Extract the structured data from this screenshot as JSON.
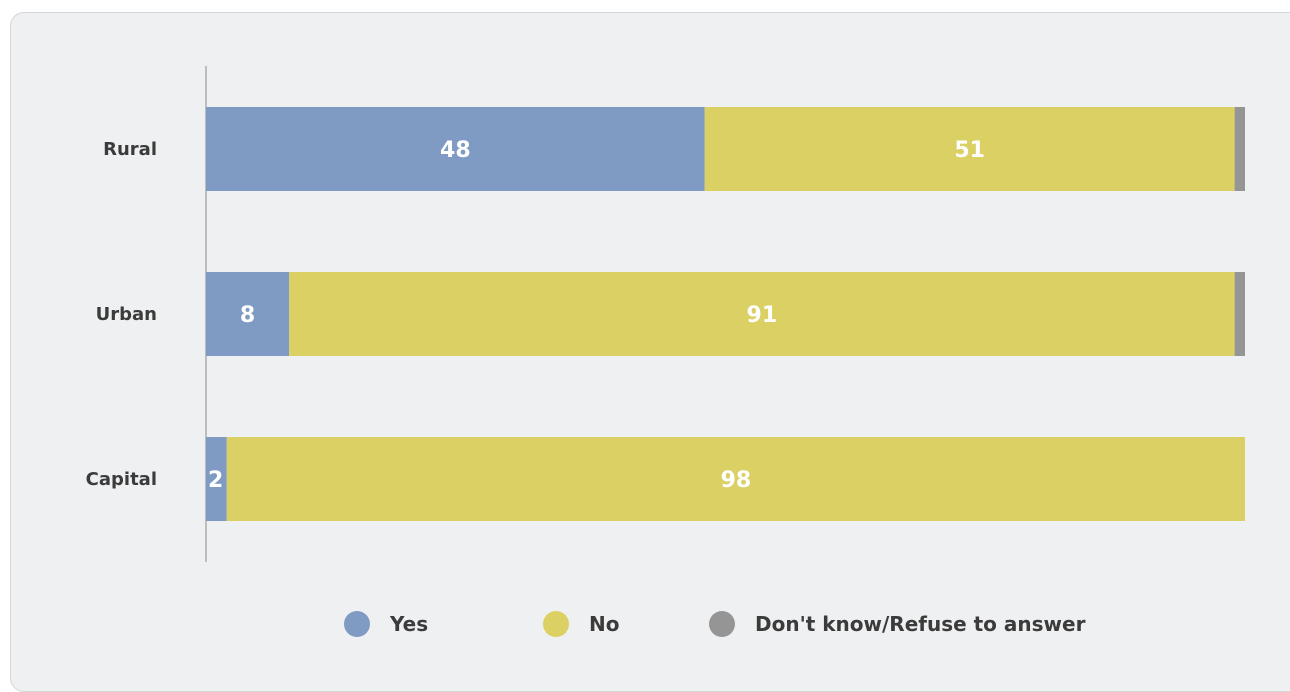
{
  "chart_data": {
    "type": "bar",
    "orientation": "horizontal",
    "stacked": true,
    "categories": [
      "Rural",
      "Urban",
      "Capital"
    ],
    "series": [
      {
        "name": "Yes",
        "values": [
          48,
          8,
          2
        ],
        "color": "#7f9bc4"
      },
      {
        "name": "No",
        "values": [
          51,
          91,
          98
        ],
        "color": "#dbd063"
      },
      {
        "name": "Don't know/Refuse to answer",
        "values": [
          1,
          1,
          0
        ],
        "color": "#959595"
      }
    ],
    "data_labels": [
      [
        "48",
        "51",
        ""
      ],
      [
        "8",
        "91",
        ""
      ],
      [
        "2",
        "98",
        ""
      ]
    ],
    "xlim": [
      0,
      100
    ],
    "grid": false,
    "legend": "bottom"
  }
}
